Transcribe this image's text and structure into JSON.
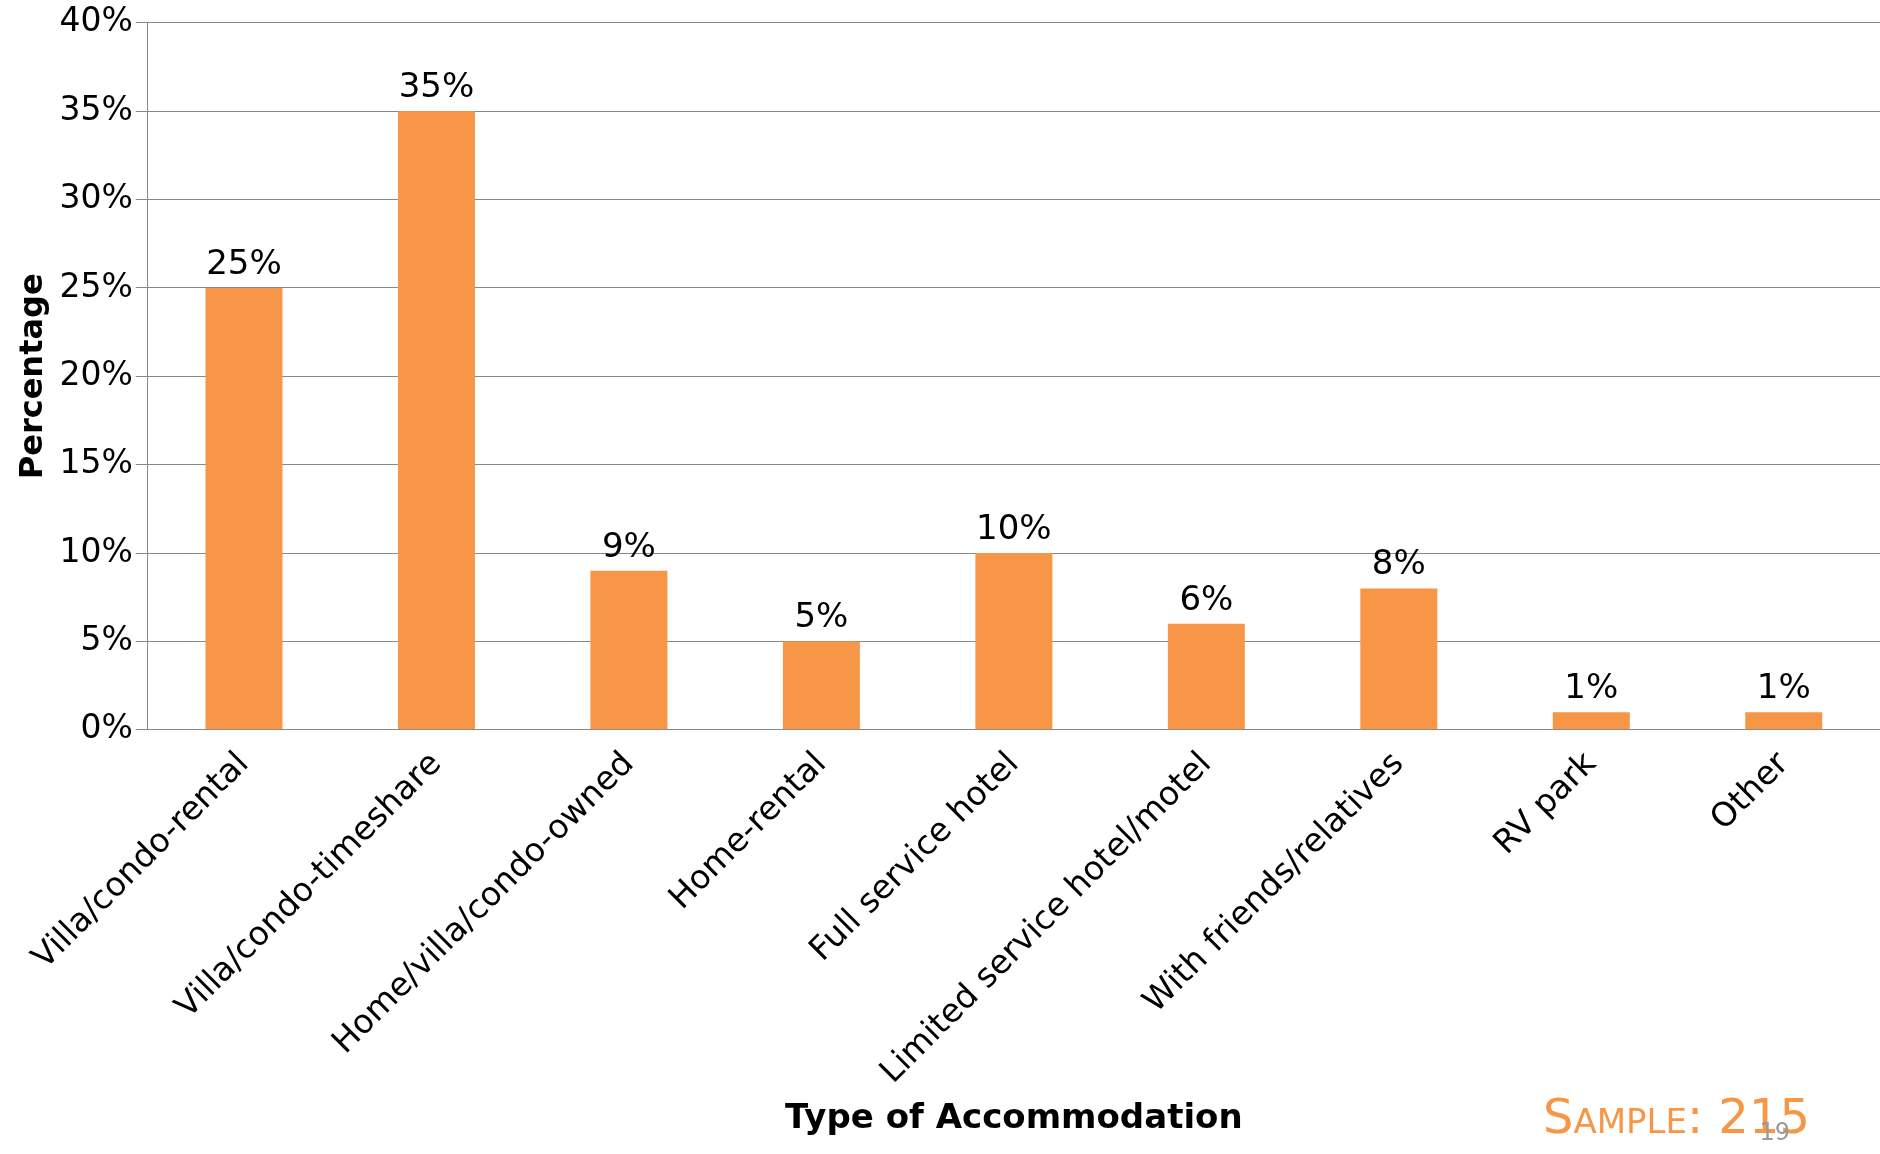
{
  "chart_data": {
    "type": "bar",
    "xlabel": "Type of Accommodation",
    "ylabel": "Percentage",
    "categories": [
      "Villa/condo-rental",
      "Villa/condo-timeshare",
      "Home/villa/condo-owned",
      "Home-rental",
      "Full service hotel",
      "Limited service hotel/motel",
      "With friends/relatives",
      "RV park",
      "Other"
    ],
    "values": [
      25,
      35,
      9,
      5,
      10,
      6,
      8,
      1,
      1
    ],
    "value_labels": [
      "25%",
      "35%",
      "9%",
      "5%",
      "10%",
      "6%",
      "8%",
      "1%",
      "1%"
    ],
    "color": "#f79646",
    "ylim": [
      0,
      40
    ],
    "yticks": [
      {
        "value": 0,
        "label": "0%"
      },
      {
        "value": 5,
        "label": "5%"
      },
      {
        "value": 10,
        "label": "10%"
      },
      {
        "value": 15,
        "label": "15%"
      },
      {
        "value": 20,
        "label": "20%"
      },
      {
        "value": 25,
        "label": "25%"
      },
      {
        "value": 30,
        "label": "30%"
      },
      {
        "value": 35,
        "label": "35%"
      },
      {
        "value": 40,
        "label": "40%"
      }
    ],
    "grid": "y",
    "legend": false,
    "annotations": [
      "Sample: 215",
      "19"
    ]
  }
}
